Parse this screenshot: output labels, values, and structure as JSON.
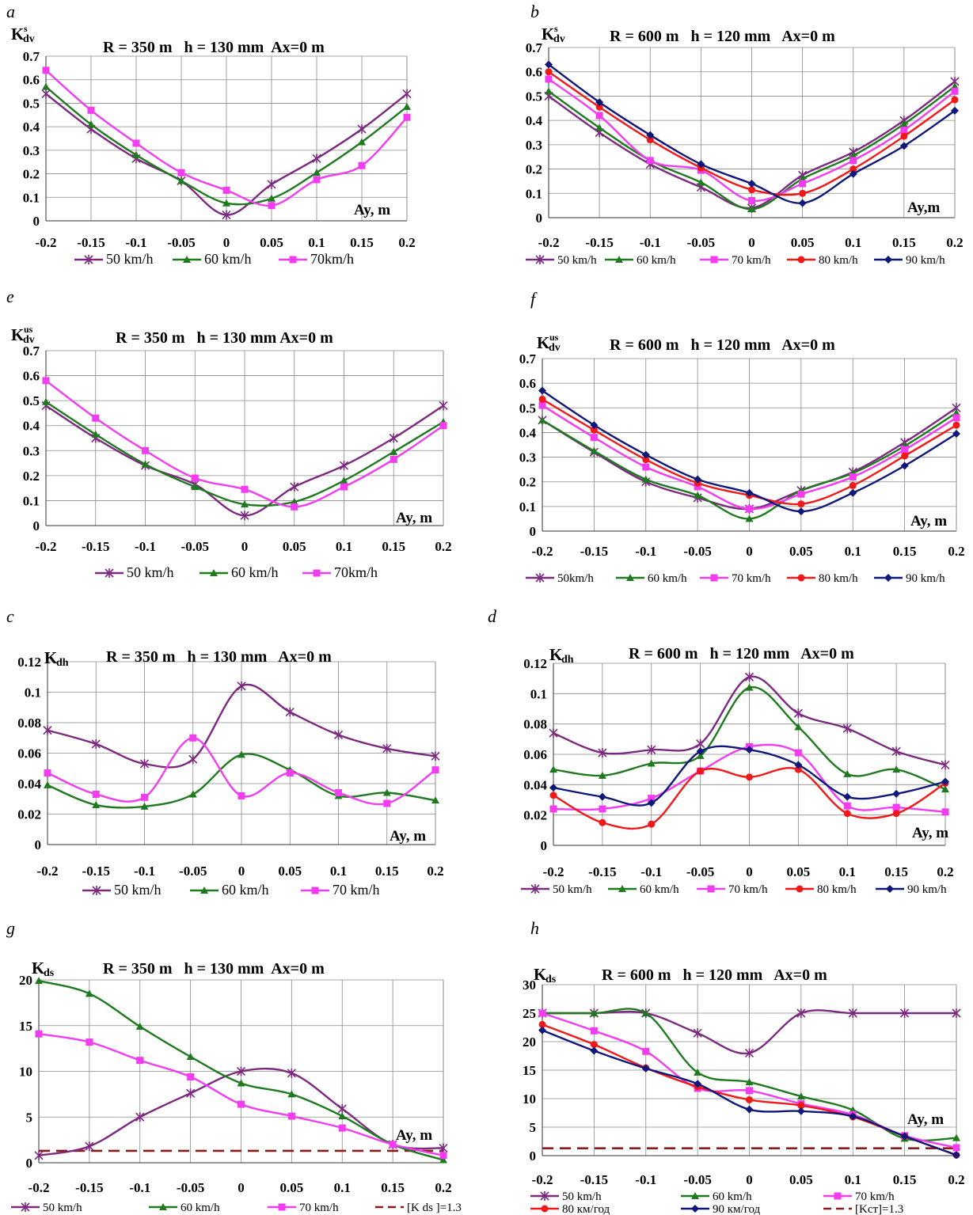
{
  "figure": {
    "colors": {
      "purple": "#7b2a7f",
      "green": "#1f7a1f",
      "magenta": "#f23cf0",
      "red": "#f01818",
      "navy": "#10177a",
      "limit": "#8b1a1a"
    },
    "panels": [
      {
        "id": "a",
        "letter": "a",
        "title": "R = 350 m   h = 130 mm  Ax=0 m",
        "ylabel_main": "K",
        "ylabel_sub": "dv",
        "ylabel_sup": "s",
        "axis_label": "Ay, m",
        "yticks": [
          "0",
          "0.1",
          "0.2",
          "0.3",
          "0.4",
          "0.5",
          "0.6",
          "0.7"
        ]
      },
      {
        "id": "b",
        "letter": "b",
        "title": "R = 600 m   h = 120 mm   Ax=0 m",
        "ylabel_main": "K",
        "ylabel_sub": "dv",
        "ylabel_sup": "s",
        "axis_label": "Ay,m",
        "yticks": [
          "0",
          "0.1",
          "0.2",
          "0.3",
          "0.4",
          "0.5",
          "0.6",
          "0.7"
        ]
      },
      {
        "id": "e",
        "letter": "e",
        "title": "R = 350 m   h = 130 mm Ax=0 m",
        "ylabel_main": "K",
        "ylabel_sub": "dv",
        "ylabel_sup": "us",
        "axis_label": "Ay, m",
        "yticks": [
          "0",
          "0.1",
          "0.2",
          "0.3",
          "0.4",
          "0.5",
          "0.6",
          "0.7"
        ]
      },
      {
        "id": "f",
        "letter": "f",
        "title": "R = 600 m   h = 120 mm   Ax=0 m",
        "ylabel_main": "K",
        "ylabel_sub": "dv",
        "ylabel_sup": "us",
        "axis_label": "Ay, m",
        "yticks": [
          "0",
          "0.1",
          "0.2",
          "0.3",
          "0.4",
          "0.5",
          "0.6",
          "0.7"
        ]
      },
      {
        "id": "c",
        "letter": "c",
        "title": "R = 350 m   h = 130 mm   Ax=0 m",
        "ylabel_main": "K",
        "ylabel_sub": "dh",
        "ylabel_sup": "",
        "axis_label": "Ay, m",
        "yticks": [
          "0",
          "0.02",
          "0.04",
          "0.06",
          "0.08",
          "0.1",
          "0.12"
        ]
      },
      {
        "id": "d",
        "letter": "d",
        "title": "R = 600 m   h = 120 mm   Ax=0 m",
        "ylabel_main": "K",
        "ylabel_sub": "dh",
        "ylabel_sup": "",
        "axis_label": "Ay, m",
        "yticks": [
          "0",
          "0.02",
          "0.04",
          "0.06",
          "0.08",
          "0.1",
          "0.12"
        ]
      },
      {
        "id": "g",
        "letter": "g",
        "title": "R = 350 m   h = 130 mm  Ax=0 m",
        "ylabel_main": "K",
        "ylabel_sub": "ds",
        "ylabel_sup": "",
        "axis_label": "Ay, m",
        "yticks": [
          "0",
          "5",
          "10",
          "15",
          "20"
        ]
      },
      {
        "id": "h",
        "letter": "h",
        "title": "R = 600 m   h = 120 mm   Ax=0 m",
        "ylabel_main": "K",
        "ylabel_sub": "ds",
        "ylabel_sup": "",
        "axis_label": "Ay, m",
        "yticks": [
          "0",
          "5",
          "10",
          "15",
          "20",
          "25",
          "30"
        ]
      }
    ]
  },
  "chart_data": [
    {
      "panel": "a",
      "type": "line",
      "title": "R = 350 m   h = 130 mm  Ax=0 m",
      "ylabel": "K_dv^s",
      "xlabel": "Ay, m",
      "x": [
        -0.2,
        -0.15,
        -0.1,
        -0.05,
        0,
        0.05,
        0.1,
        0.15,
        0.2
      ],
      "xlim": [
        -0.2,
        0.2
      ],
      "ylim": [
        0,
        0.7
      ],
      "grid": true,
      "legend": "bottom",
      "series": [
        {
          "name": "50 km/h",
          "color": "#7b2a7f",
          "marker": "star",
          "values": [
            0.54,
            0.39,
            0.265,
            0.17,
            0.025,
            0.155,
            0.265,
            0.39,
            0.54
          ]
        },
        {
          "name": "60 km/h",
          "color": "#1f7a1f",
          "marker": "triangle",
          "values": [
            0.57,
            0.41,
            0.28,
            0.17,
            0.075,
            0.095,
            0.205,
            0.335,
            0.485
          ]
        },
        {
          "name": "70km/h",
          "color": "#f23cf0",
          "marker": "square",
          "values": [
            0.64,
            0.47,
            0.33,
            0.205,
            0.13,
            0.065,
            0.175,
            0.235,
            0.44
          ]
        }
      ]
    },
    {
      "panel": "b",
      "type": "line",
      "title": "R = 600 m   h = 120 mm   Ax=0 m",
      "ylabel": "K_dv^s",
      "xlabel": "Ay,m",
      "x": [
        -0.2,
        -0.15,
        -0.1,
        -0.05,
        0,
        0.05,
        0.1,
        0.15,
        0.2
      ],
      "xlim": [
        -0.2,
        0.2
      ],
      "ylim": [
        0,
        0.7
      ],
      "grid": true,
      "legend": "bottom",
      "series": [
        {
          "name": "50 km/h",
          "color": "#7b2a7f",
          "marker": "star",
          "values": [
            0.5,
            0.35,
            0.22,
            0.125,
            0.04,
            0.175,
            0.27,
            0.4,
            0.56
          ]
        },
        {
          "name": "60 km/h",
          "color": "#1f7a1f",
          "marker": "triangle",
          "values": [
            0.52,
            0.37,
            0.235,
            0.145,
            0.035,
            0.16,
            0.255,
            0.385,
            0.54
          ]
        },
        {
          "name": "70 km/h",
          "color": "#f23cf0",
          "marker": "square",
          "values": [
            0.57,
            0.42,
            0.235,
            0.195,
            0.07,
            0.14,
            0.235,
            0.36,
            0.52
          ]
        },
        {
          "name": "80 km/h",
          "color": "#f01818",
          "marker": "circle",
          "values": [
            0.6,
            0.455,
            0.32,
            0.205,
            0.115,
            0.1,
            0.2,
            0.335,
            0.485
          ]
        },
        {
          "name": "90 km/h",
          "color": "#10177a",
          "marker": "diamond",
          "values": [
            0.63,
            0.475,
            0.34,
            0.22,
            0.14,
            0.06,
            0.18,
            0.295,
            0.44
          ]
        }
      ]
    },
    {
      "panel": "e",
      "type": "line",
      "title": "R = 350 m   h = 130 mm Ax=0 m",
      "ylabel": "K_dv^us",
      "xlabel": "Ay, m",
      "x": [
        -0.2,
        -0.15,
        -0.1,
        -0.05,
        0,
        0.05,
        0.1,
        0.15,
        0.2
      ],
      "xlim": [
        -0.2,
        0.2
      ],
      "ylim": [
        0,
        0.7
      ],
      "grid": true,
      "legend": "bottom",
      "series": [
        {
          "name": "50 km/h",
          "color": "#7b2a7f",
          "marker": "star",
          "values": [
            0.48,
            0.35,
            0.24,
            0.165,
            0.04,
            0.155,
            0.24,
            0.35,
            0.48
          ]
        },
        {
          "name": "60 km/h",
          "color": "#1f7a1f",
          "marker": "triangle",
          "values": [
            0.495,
            0.365,
            0.245,
            0.155,
            0.085,
            0.095,
            0.18,
            0.295,
            0.415
          ]
        },
        {
          "name": "70km/h",
          "color": "#f23cf0",
          "marker": "square",
          "values": [
            0.58,
            0.43,
            0.3,
            0.19,
            0.145,
            0.075,
            0.155,
            0.265,
            0.4
          ]
        }
      ]
    },
    {
      "panel": "f",
      "type": "line",
      "title": "R = 600 m   h = 120 mm   Ax=0 m",
      "ylabel": "K_dv^us",
      "xlabel": "Ay, m",
      "x": [
        -0.2,
        -0.15,
        -0.1,
        -0.05,
        0,
        0.05,
        0.1,
        0.15,
        0.2
      ],
      "xlim": [
        -0.2,
        0.2
      ],
      "ylim": [
        0,
        0.7
      ],
      "grid": true,
      "legend": "bottom",
      "series": [
        {
          "name": "50km/h",
          "color": "#7b2a7f",
          "marker": "star",
          "values": [
            0.45,
            0.32,
            0.2,
            0.135,
            0.09,
            0.165,
            0.24,
            0.36,
            0.5
          ]
        },
        {
          "name": "60 km/h",
          "color": "#1f7a1f",
          "marker": "triangle",
          "values": [
            0.45,
            0.325,
            0.21,
            0.145,
            0.05,
            0.165,
            0.235,
            0.345,
            0.48
          ]
        },
        {
          "name": "70 km/h",
          "color": "#f23cf0",
          "marker": "square",
          "values": [
            0.51,
            0.38,
            0.26,
            0.18,
            0.09,
            0.15,
            0.22,
            0.33,
            0.46
          ]
        },
        {
          "name": "80 km/h",
          "color": "#f01818",
          "marker": "circle",
          "values": [
            0.535,
            0.41,
            0.29,
            0.195,
            0.145,
            0.11,
            0.185,
            0.305,
            0.43
          ]
        },
        {
          "name": "90 km/h",
          "color": "#10177a",
          "marker": "diamond",
          "values": [
            0.57,
            0.43,
            0.31,
            0.21,
            0.155,
            0.08,
            0.155,
            0.265,
            0.395
          ]
        }
      ]
    },
    {
      "panel": "c",
      "type": "line",
      "title": "R = 350 m   h = 130 mm   Ax=0 m",
      "ylabel": "K_dh",
      "xlabel": "Ay, m",
      "x": [
        -0.2,
        -0.15,
        -0.1,
        -0.05,
        0,
        0.05,
        0.1,
        0.15,
        0.2
      ],
      "xlim": [
        -0.2,
        0.2
      ],
      "ylim": [
        0,
        0.12
      ],
      "grid": true,
      "legend": "bottom",
      "series": [
        {
          "name": "50 km/h",
          "color": "#7b2a7f",
          "marker": "star",
          "values": [
            0.075,
            0.066,
            0.053,
            0.056,
            0.104,
            0.087,
            0.072,
            0.063,
            0.058
          ]
        },
        {
          "name": "60 km/h",
          "color": "#1f7a1f",
          "marker": "triangle",
          "values": [
            0.039,
            0.026,
            0.025,
            0.033,
            0.059,
            0.049,
            0.032,
            0.034,
            0.029
          ]
        },
        {
          "name": "70 km/h",
          "color": "#f23cf0",
          "marker": "square",
          "values": [
            0.047,
            0.033,
            0.031,
            0.07,
            0.032,
            0.047,
            0.034,
            0.027,
            0.049
          ]
        }
      ]
    },
    {
      "panel": "d",
      "type": "line",
      "title": "R = 600 m   h = 120 mm   Ax=0 m",
      "ylabel": "K_dh",
      "xlabel": "Ay, m",
      "x": [
        -0.2,
        -0.15,
        -0.1,
        -0.05,
        0,
        0.05,
        0.1,
        0.15,
        0.2
      ],
      "xlim": [
        -0.2,
        0.2
      ],
      "ylim": [
        0,
        0.12
      ],
      "grid": true,
      "legend": "bottom",
      "series": [
        {
          "name": "50 km/h",
          "color": "#7b2a7f",
          "marker": "star",
          "values": [
            0.074,
            0.061,
            0.063,
            0.067,
            0.111,
            0.087,
            0.077,
            0.062,
            0.053
          ]
        },
        {
          "name": "60 km/h",
          "color": "#1f7a1f",
          "marker": "triangle",
          "values": [
            0.05,
            0.046,
            0.054,
            0.059,
            0.104,
            0.078,
            0.047,
            0.05,
            0.037
          ]
        },
        {
          "name": "70 km/h",
          "color": "#f23cf0",
          "marker": "square",
          "values": [
            0.024,
            0.024,
            0.031,
            0.049,
            0.065,
            0.061,
            0.026,
            0.025,
            0.022
          ]
        },
        {
          "name": "80 km/h",
          "color": "#f01818",
          "marker": "circle",
          "values": [
            0.033,
            0.015,
            0.014,
            0.049,
            0.045,
            0.05,
            0.021,
            0.021,
            0.041
          ]
        },
        {
          "name": "90 km/h",
          "color": "#10177a",
          "marker": "diamond",
          "values": [
            0.038,
            0.032,
            0.028,
            0.062,
            0.063,
            0.053,
            0.032,
            0.034,
            0.042
          ]
        }
      ]
    },
    {
      "panel": "g",
      "type": "line",
      "title": "R = 350 m   h = 130 mm  Ax=0 m",
      "ylabel": "K_ds",
      "xlabel": "Ay, m",
      "x": [
        -0.2,
        -0.15,
        -0.1,
        -0.05,
        0,
        0.05,
        0.1,
        0.15,
        0.2
      ],
      "xlim": [
        -0.2,
        0.2
      ],
      "ylim": [
        0,
        20
      ],
      "grid": true,
      "legend": "bottom",
      "series": [
        {
          "name": "50 km/h",
          "color": "#7b2a7f",
          "marker": "star",
          "values": [
            0.8,
            1.8,
            5.0,
            7.6,
            10.0,
            9.8,
            5.9,
            2.0,
            1.6
          ]
        },
        {
          "name": "60 km/h",
          "color": "#1f7a1f",
          "marker": "triangle",
          "values": [
            19.9,
            18.5,
            14.9,
            11.6,
            8.7,
            7.5,
            5.1,
            2.0,
            0.3
          ]
        },
        {
          "name": "70 km/h",
          "color": "#f23cf0",
          "marker": "square",
          "values": [
            14.1,
            13.2,
            11.2,
            9.4,
            6.4,
            5.1,
            3.8,
            2.0,
            0.8
          ]
        }
      ],
      "limit_line": {
        "name": "[K ds ]=1.3",
        "value": 1.3
      }
    },
    {
      "panel": "h",
      "type": "line",
      "title": "R = 600 m   h = 120 mm   Ax=0 m",
      "ylabel": "K_ds",
      "xlabel": "Ay, m",
      "x": [
        -0.2,
        -0.15,
        -0.1,
        -0.05,
        0,
        0.05,
        0.1,
        0.15,
        0.2
      ],
      "xlim": [
        -0.2,
        0.2
      ],
      "ylim": [
        0,
        30
      ],
      "grid": true,
      "legend": "bottom",
      "series": [
        {
          "name": "50 km/h",
          "color": "#7b2a7f",
          "marker": "star",
          "values": [
            25,
            25,
            25,
            21.5,
            18,
            25,
            25,
            25,
            25
          ]
        },
        {
          "name": "60 km/h",
          "color": "#1f7a1f",
          "marker": "triangle",
          "values": [
            25,
            25,
            25,
            14.6,
            12.9,
            10.4,
            8.0,
            3.0,
            3.1
          ]
        },
        {
          "name": "70 km/h",
          "color": "#f23cf0",
          "marker": "square",
          "values": [
            25,
            21.9,
            18.3,
            11.8,
            11.4,
            9.1,
            7.2,
            3.5,
            1.4
          ]
        },
        {
          "name": "80 км/год",
          "color": "#f01818",
          "marker": "circle",
          "values": [
            23,
            19.5,
            15.4,
            12.1,
            9.8,
            8.8,
            6.8,
            3.4,
            0.1
          ]
        },
        {
          "name": "90 км/год",
          "color": "#10177a",
          "marker": "diamond",
          "values": [
            22,
            18.4,
            15.3,
            12.6,
            8.1,
            7.8,
            6.9,
            3.4,
            0.1
          ]
        }
      ],
      "limit_line": {
        "name": "[Kст]=1.3",
        "value": 1.3
      }
    }
  ]
}
